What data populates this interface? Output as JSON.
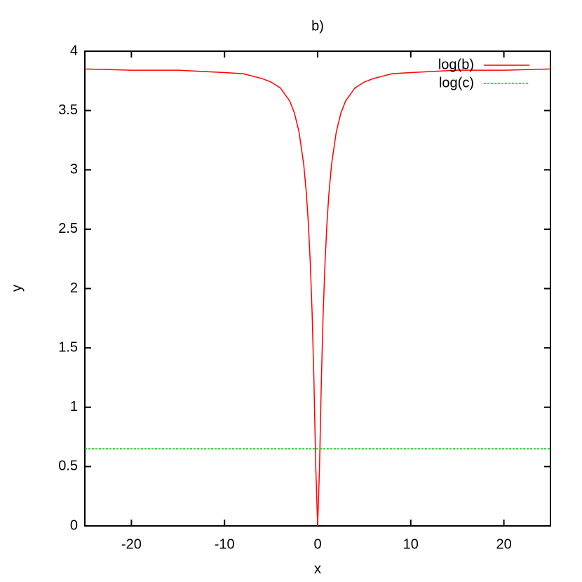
{
  "chart_data": {
    "type": "line",
    "title": "b)",
    "x_label": "x",
    "y_label": "y",
    "x": [
      -25,
      -20,
      -15,
      -10,
      -8,
      -6,
      -5,
      -4,
      -3,
      -2.5,
      -2,
      -1.5,
      -1.2,
      -1,
      -0.8,
      -0.6,
      -0.4,
      -0.2,
      0,
      0.2,
      0.4,
      0.6,
      0.8,
      1,
      1.2,
      1.5,
      2,
      2.5,
      3,
      4,
      5,
      6,
      8,
      10,
      15,
      20,
      25
    ],
    "series": [
      {
        "name": "log(b)",
        "color": "#ff0000",
        "dashed": false,
        "values": [
          3.85,
          3.84,
          3.84,
          3.82,
          3.81,
          3.77,
          3.74,
          3.69,
          3.58,
          3.48,
          3.32,
          3.05,
          2.79,
          2.55,
          2.23,
          1.81,
          1.23,
          0.49,
          0,
          0.49,
          1.23,
          1.81,
          2.23,
          2.55,
          2.79,
          3.05,
          3.32,
          3.48,
          3.58,
          3.69,
          3.74,
          3.77,
          3.81,
          3.82,
          3.84,
          3.84,
          3.85
        ]
      },
      {
        "name": "log(c)",
        "color": "#00cc00",
        "dashed": true,
        "values": [
          0.65,
          0.65,
          0.65,
          0.65,
          0.65,
          0.65,
          0.65,
          0.65,
          0.65,
          0.65,
          0.65,
          0.65,
          0.65,
          0.65,
          0.65,
          0.65,
          0.65,
          0.65,
          0.65,
          0.65,
          0.65,
          0.65,
          0.65,
          0.65,
          0.65,
          0.65,
          0.65,
          0.65,
          0.65,
          0.65,
          0.65,
          0.65,
          0.65,
          0.65,
          0.65,
          0.65,
          0.65
        ]
      }
    ],
    "xlim": [
      -25,
      25
    ],
    "xticks": [
      -20,
      -10,
      0,
      10,
      20
    ],
    "ylim": [
      0,
      4
    ],
    "yticks": [
      0,
      0.5,
      1,
      1.5,
      2,
      2.5,
      3,
      3.5,
      4
    ],
    "legend": "top-right"
  }
}
